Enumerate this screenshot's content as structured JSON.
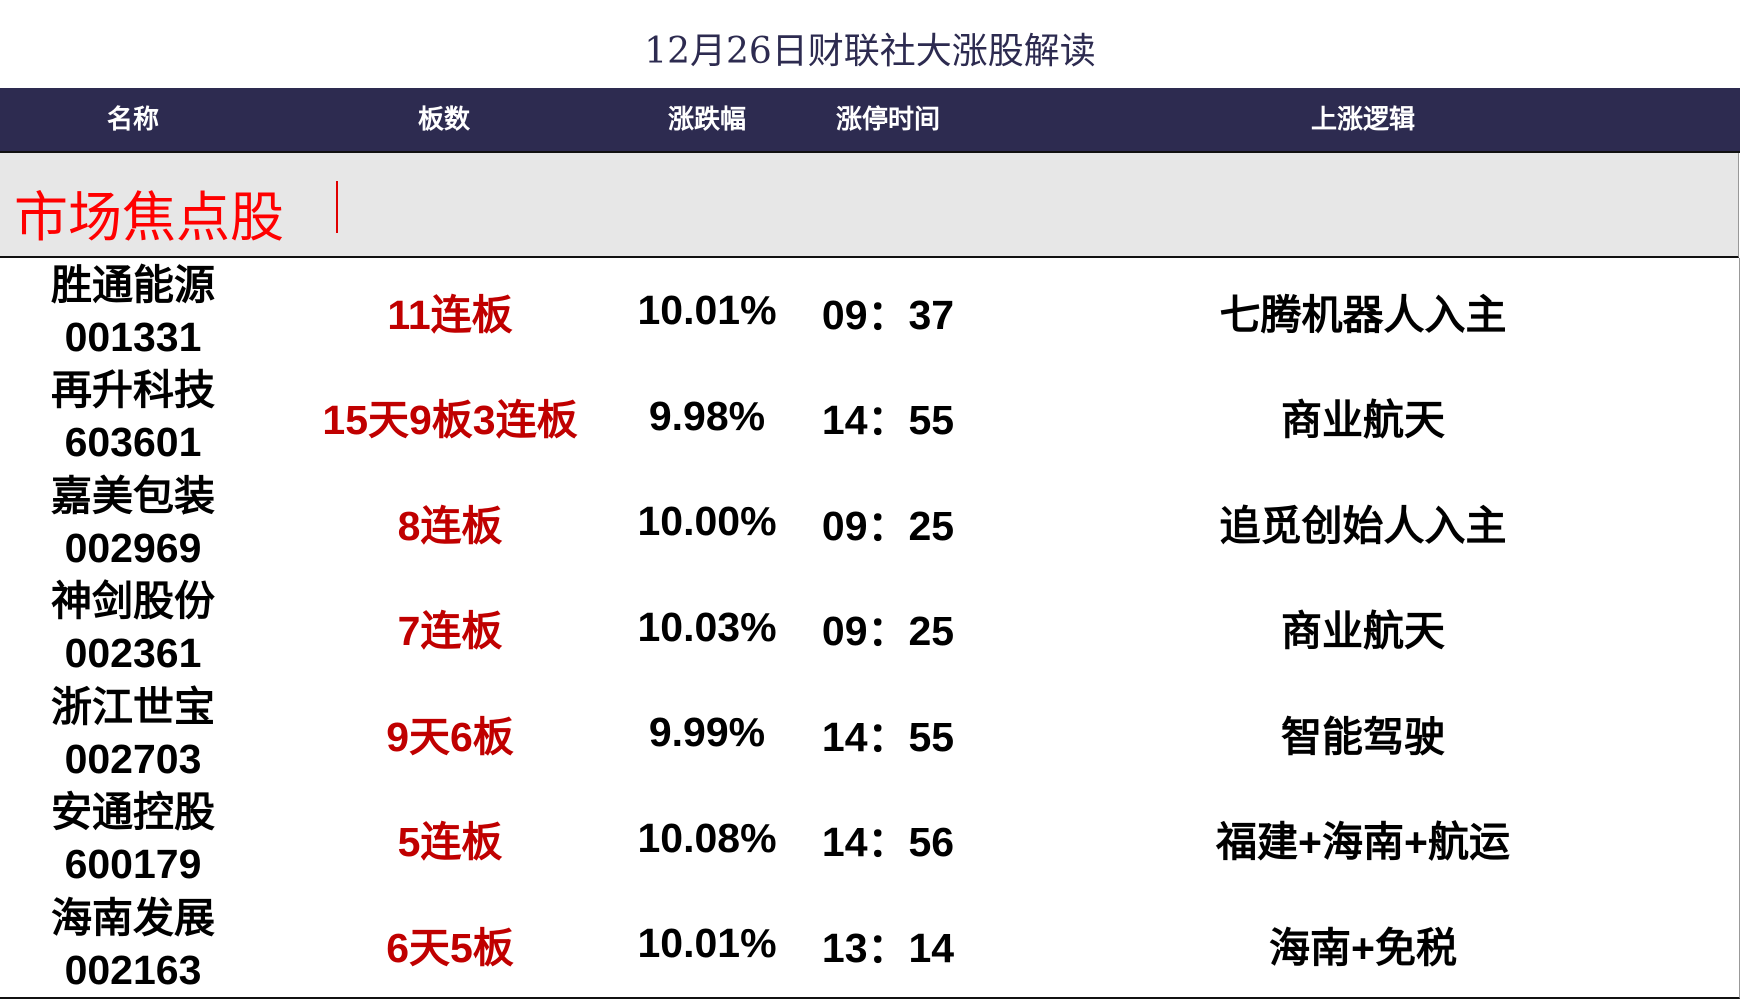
{
  "title": "12月26日财联社大涨股解读",
  "headers": [
    "名称",
    "板数",
    "涨跌幅",
    "涨停时间",
    "上涨逻辑"
  ],
  "section_label": "市场焦点股",
  "colors": {
    "header_bg": "#2d2b50",
    "section_bg": "#e7e7e7",
    "section_text": "#ff0000",
    "boards_text": "#c00000"
  },
  "rows": [
    {
      "name": "胜通能源",
      "code": "001331",
      "boards": "11连板",
      "change": "10.01%",
      "time": "09：37",
      "logic": "七腾机器人入主"
    },
    {
      "name": "再升科技",
      "code": "603601",
      "boards": "15天9板3连板",
      "change": "9.98%",
      "time": "14：55",
      "logic": "商业航天"
    },
    {
      "name": "嘉美包装",
      "code": "002969",
      "boards": "8连板",
      "change": "10.00%",
      "time": "09：25",
      "logic": "追觅创始人入主"
    },
    {
      "name": "神剑股份",
      "code": "002361",
      "boards": "7连板",
      "change": "10.03%",
      "time": "09：25",
      "logic": "商业航天"
    },
    {
      "name": "浙江世宝",
      "code": "002703",
      "boards": "9天6板",
      "change": "9.99%",
      "time": "14：55",
      "logic": "智能驾驶"
    },
    {
      "name": "安通控股",
      "code": "600179",
      "boards": "5连板",
      "change": "10.08%",
      "time": "14：56",
      "logic": "福建+海南+航运"
    },
    {
      "name": "海南发展",
      "code": "002163",
      "boards": "6天5板",
      "change": "10.01%",
      "time": "13：14",
      "logic": "海南+免税"
    }
  ]
}
